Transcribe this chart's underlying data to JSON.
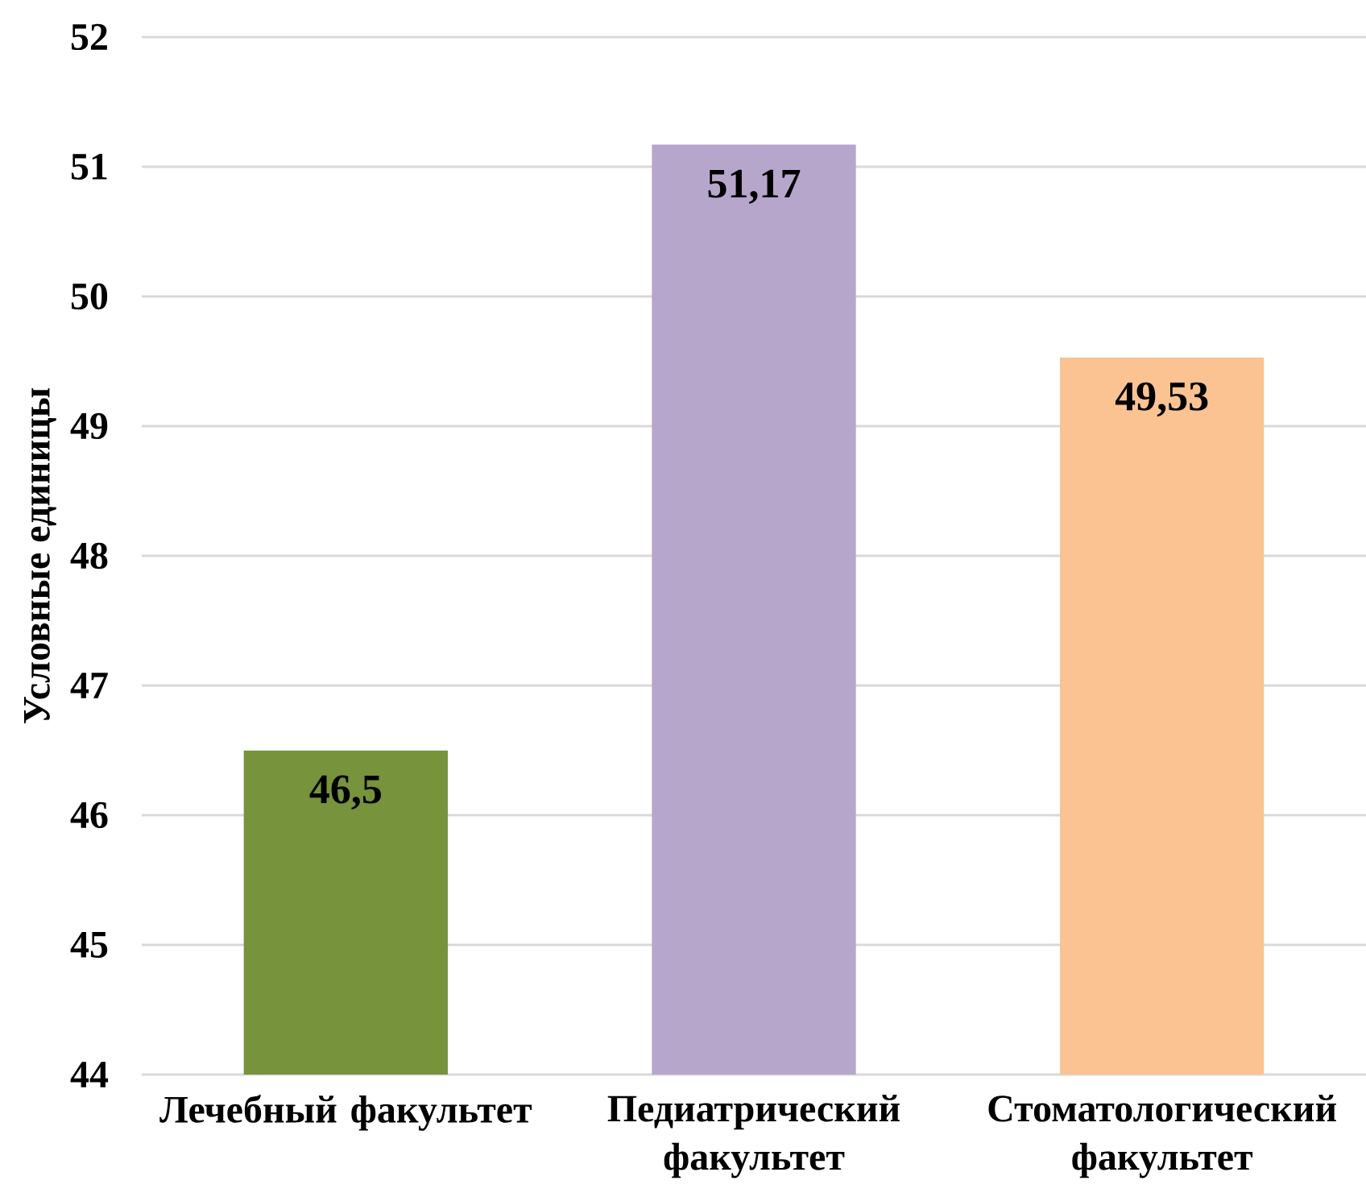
{
  "chart_data": {
    "type": "bar",
    "ylabel": "Условные единицы",
    "categories": [
      "Лечебный факультет",
      "Педиатрический факультет",
      "Стоматологический факультет"
    ],
    "values": [
      46.5,
      51.17,
      49.53
    ],
    "colors": [
      "#77933c",
      "#b7a6cc",
      "#fac391"
    ],
    "value_labels": [
      "46,5",
      "51,17",
      "49,53"
    ],
    "ylim": [
      44,
      52
    ],
    "yticks": [
      44,
      45,
      46,
      47,
      48,
      49,
      50,
      51,
      52
    ],
    "grid": "y"
  }
}
